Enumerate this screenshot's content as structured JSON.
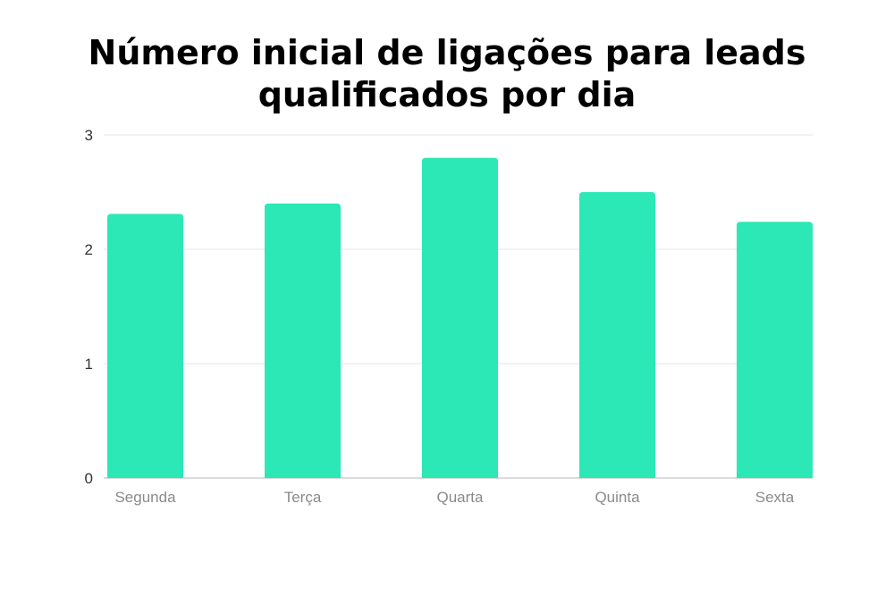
{
  "chart_data": {
    "type": "bar",
    "title": "Número inicial de ligações para leads qualificados por dia",
    "title_lines": [
      "Número inicial de ligações para leads",
      "qualificados por dia"
    ],
    "categories": [
      "Segunda",
      "Terça",
      "Quarta",
      "Quinta",
      "Sexta"
    ],
    "values": [
      2.31,
      2.4,
      2.8,
      2.5,
      2.24
    ],
    "xlabel": "",
    "ylabel": "",
    "ylim": [
      0,
      3
    ],
    "yticks": [
      "0",
      "1",
      "2",
      "3"
    ],
    "grid": true,
    "legend": "none",
    "bar_color": "#2be8b6",
    "grid_color": "#e6e6e6",
    "axis_color": "#cfcfcf"
  }
}
